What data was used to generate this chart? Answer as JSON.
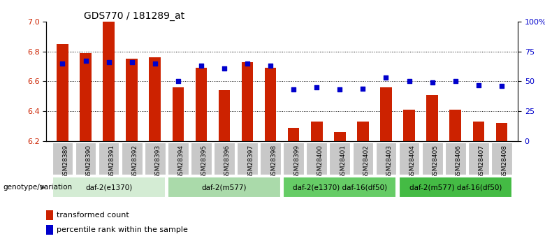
{
  "title": "GDS770 / 181289_at",
  "samples": [
    "GSM28389",
    "GSM28390",
    "GSM28391",
    "GSM28392",
    "GSM28393",
    "GSM28394",
    "GSM28395",
    "GSM28396",
    "GSM28397",
    "GSM28398",
    "GSM28399",
    "GSM28400",
    "GSM28401",
    "GSM28402",
    "GSM28403",
    "GSM28404",
    "GSM28405",
    "GSM28406",
    "GSM28407",
    "GSM28408"
  ],
  "bar_values": [
    6.85,
    6.79,
    7.0,
    6.75,
    6.76,
    6.56,
    6.69,
    6.54,
    6.73,
    6.69,
    6.29,
    6.33,
    6.26,
    6.33,
    6.56,
    6.41,
    6.51,
    6.41,
    6.33,
    6.32
  ],
  "percentile_values": [
    65,
    67,
    66,
    66,
    65,
    50,
    63,
    61,
    65,
    63,
    43,
    45,
    43,
    44,
    53,
    50,
    49,
    50,
    47,
    46
  ],
  "groups": [
    {
      "label": "daf-2(e1370)",
      "start": 0,
      "end": 4,
      "color": "#d4ecd4"
    },
    {
      "label": "daf-2(m577)",
      "start": 5,
      "end": 9,
      "color": "#aadaaa"
    },
    {
      "label": "daf-2(e1370) daf-16(df50)",
      "start": 10,
      "end": 14,
      "color": "#66cc66"
    },
    {
      "label": "daf-2(m577) daf-16(df50)",
      "start": 15,
      "end": 19,
      "color": "#44bb44"
    }
  ],
  "ylim_left": [
    6.2,
    7.0
  ],
  "ylim_right": [
    0,
    100
  ],
  "yticks_left": [
    6.2,
    6.4,
    6.6,
    6.8,
    7.0
  ],
  "yticks_right": [
    0,
    25,
    50,
    75,
    100
  ],
  "ytick_labels_right": [
    "0",
    "25",
    "50",
    "75",
    "100%"
  ],
  "bar_color": "#cc2200",
  "dot_color": "#0000cc",
  "bar_width": 0.5,
  "genotype_label": "genotype/variation",
  "legend_bar_label": "transformed count",
  "legend_dot_label": "percentile rank within the sample",
  "gray_tick_bg": "#c8c8c8"
}
